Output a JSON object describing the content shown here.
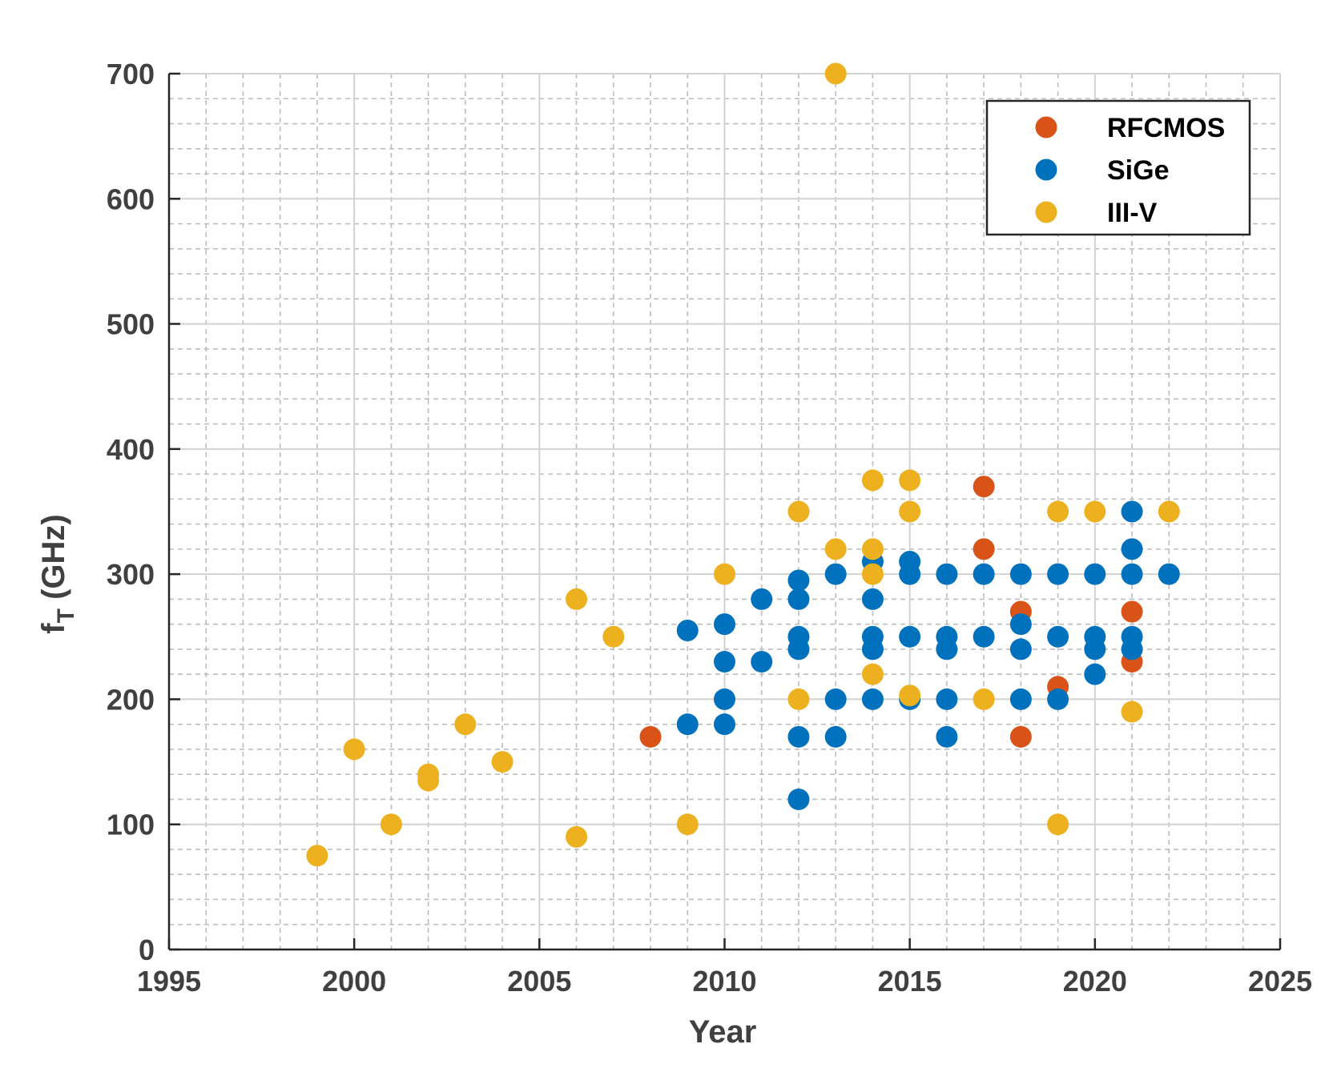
{
  "chart_data": {
    "type": "scatter",
    "title": "",
    "xlabel": "Year",
    "ylabel": {
      "main": "f",
      "sub": "T",
      "unit": " (GHz)"
    },
    "xlim": [
      1995,
      2025
    ],
    "ylim": [
      0,
      700
    ],
    "xticks": [
      1995,
      2000,
      2005,
      2010,
      2015,
      2020,
      2025
    ],
    "yticks": [
      0,
      100,
      200,
      300,
      400,
      500,
      600,
      700
    ],
    "grid": true,
    "minor_grid": true,
    "legend_position": "top-right",
    "series": [
      {
        "name": "RFCMOS",
        "color": "#D95319",
        "points": [
          [
            2008,
            170
          ],
          [
            2017,
            370
          ],
          [
            2017,
            320
          ],
          [
            2018,
            270
          ],
          [
            2018,
            170
          ],
          [
            2019,
            210
          ],
          [
            2021,
            270
          ],
          [
            2021,
            230
          ]
        ]
      },
      {
        "name": "SiGe",
        "color": "#0072BD",
        "points": [
          [
            2009,
            255
          ],
          [
            2009,
            180
          ],
          [
            2010,
            260
          ],
          [
            2010,
            230
          ],
          [
            2010,
            200
          ],
          [
            2010,
            180
          ],
          [
            2011,
            280
          ],
          [
            2011,
            230
          ],
          [
            2012,
            295
          ],
          [
            2012,
            280
          ],
          [
            2012,
            250
          ],
          [
            2012,
            240
          ],
          [
            2012,
            170
          ],
          [
            2012,
            120
          ],
          [
            2013,
            300
          ],
          [
            2013,
            200
          ],
          [
            2013,
            170
          ],
          [
            2014,
            310
          ],
          [
            2014,
            280
          ],
          [
            2014,
            250
          ],
          [
            2014,
            240
          ],
          [
            2014,
            200
          ],
          [
            2015,
            310
          ],
          [
            2015,
            300
          ],
          [
            2015,
            250
          ],
          [
            2015,
            200
          ],
          [
            2016,
            300
          ],
          [
            2016,
            250
          ],
          [
            2016,
            240
          ],
          [
            2016,
            200
          ],
          [
            2016,
            170
          ],
          [
            2017,
            300
          ],
          [
            2017,
            250
          ],
          [
            2018,
            300
          ],
          [
            2018,
            260
          ],
          [
            2018,
            240
          ],
          [
            2018,
            200
          ],
          [
            2019,
            300
          ],
          [
            2019,
            250
          ],
          [
            2019,
            200
          ],
          [
            2020,
            300
          ],
          [
            2020,
            250
          ],
          [
            2020,
            240
          ],
          [
            2020,
            220
          ],
          [
            2021,
            350
          ],
          [
            2021,
            320
          ],
          [
            2021,
            300
          ],
          [
            2021,
            250
          ],
          [
            2021,
            240
          ],
          [
            2022,
            300
          ]
        ]
      },
      {
        "name": "III-V",
        "color": "#EDB120",
        "points": [
          [
            1999,
            75
          ],
          [
            2000,
            160
          ],
          [
            2001,
            100
          ],
          [
            2002,
            140
          ],
          [
            2002,
            135
          ],
          [
            2003,
            180
          ],
          [
            2004,
            150
          ],
          [
            2006,
            280
          ],
          [
            2006,
            90
          ],
          [
            2007,
            250
          ],
          [
            2009,
            100
          ],
          [
            2010,
            300
          ],
          [
            2012,
            350
          ],
          [
            2012,
            200
          ],
          [
            2013,
            700
          ],
          [
            2013,
            320
          ],
          [
            2014,
            375
          ],
          [
            2014,
            320
          ],
          [
            2014,
            300
          ],
          [
            2014,
            220
          ],
          [
            2015,
            375
          ],
          [
            2015,
            350
          ],
          [
            2015,
            203
          ],
          [
            2017,
            200
          ],
          [
            2019,
            350
          ],
          [
            2019,
            100
          ],
          [
            2020,
            350
          ],
          [
            2021,
            190
          ],
          [
            2022,
            350
          ]
        ]
      }
    ]
  }
}
